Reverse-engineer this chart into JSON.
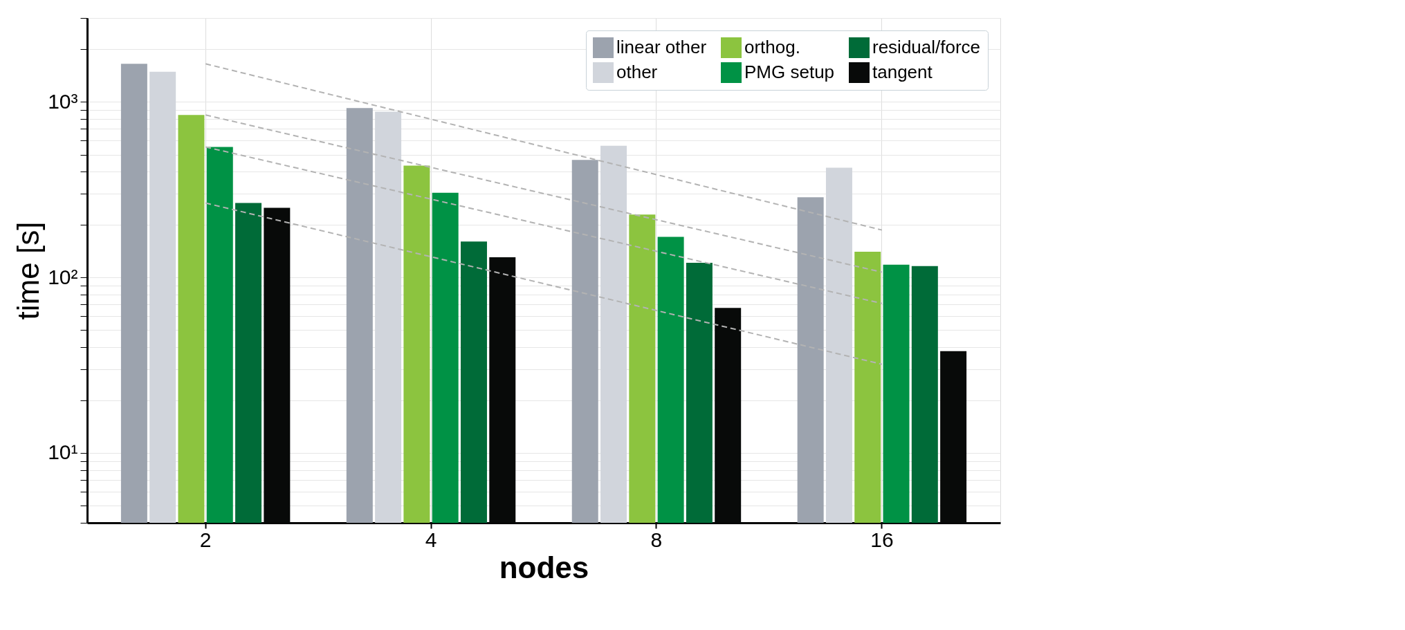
{
  "chart_data": {
    "type": "bar",
    "xlabel": "nodes",
    "ylabel": "time [s]",
    "categories": [
      "2",
      "4",
      "8",
      "16"
    ],
    "series": [
      {
        "name": "linear other",
        "color": "#9ca3ae",
        "values": [
          1645,
          920,
          466,
          286
        ]
      },
      {
        "name": "other",
        "color": "#d1d5dc",
        "values": [
          1482,
          877,
          562,
          421
        ]
      },
      {
        "name": "orthog.",
        "color": "#8cc43f",
        "values": [
          841,
          433,
          228,
          140
        ]
      },
      {
        "name": "PMG setup",
        "color": "#009245",
        "values": [
          553,
          303,
          170,
          118
        ]
      },
      {
        "name": "residual/force",
        "color": "#006b38",
        "values": [
          265,
          160,
          121,
          116
        ]
      },
      {
        "name": "tangent",
        "color": "#080a09",
        "values": [
          249,
          130,
          67,
          38
        ]
      },
      {
        "type": "line",
        "color": "#b3b3b3",
        "line_style": "dashed",
        "x": [
          "2",
          "16"
        ],
        "values": [
          1645,
          186
        ]
      },
      {
        "type": "line",
        "color": "#b3b3b3",
        "line_style": "dashed",
        "x": [
          "2",
          "16"
        ],
        "values": [
          841,
          107
        ]
      },
      {
        "type": "line",
        "color": "#b3b3b3",
        "line_style": "dashed",
        "x": [
          "2",
          "16"
        ],
        "values": [
          553,
          71
        ]
      },
      {
        "type": "line",
        "color": "#b3b3b3",
        "line_style": "dashed",
        "x": [
          "2",
          "16"
        ],
        "values": [
          265,
          32
        ]
      }
    ],
    "log": "y",
    "ylim": [
      4,
      3000
    ],
    "yticks": [
      {
        "value": 4,
        "label": null
      },
      {
        "value": 5,
        "label": null
      },
      {
        "value": 6,
        "label": null
      },
      {
        "value": 7,
        "label": null
      },
      {
        "value": 8,
        "label": null
      },
      {
        "value": 9,
        "label": null
      },
      {
        "value": 10,
        "label": "10¹"
      },
      {
        "value": 20,
        "label": null
      },
      {
        "value": 30,
        "label": null
      },
      {
        "value": 40,
        "label": null
      },
      {
        "value": 50,
        "label": null
      },
      {
        "value": 60,
        "label": null
      },
      {
        "value": 70,
        "label": null
      },
      {
        "value": 80,
        "label": null
      },
      {
        "value": 90,
        "label": null
      },
      {
        "value": 100,
        "label": "10²"
      },
      {
        "value": 200,
        "label": null
      },
      {
        "value": 300,
        "label": null
      },
      {
        "value": 400,
        "label": null
      },
      {
        "value": 500,
        "label": null
      },
      {
        "value": 600,
        "label": null
      },
      {
        "value": 700,
        "label": null
      },
      {
        "value": 800,
        "label": null
      },
      {
        "value": 900,
        "label": null
      },
      {
        "value": 1000,
        "label": "10³"
      },
      {
        "value": 2000,
        "label": null
      },
      {
        "value": 3000,
        "label": null
      }
    ],
    "grid": true,
    "legend": "top right"
  }
}
